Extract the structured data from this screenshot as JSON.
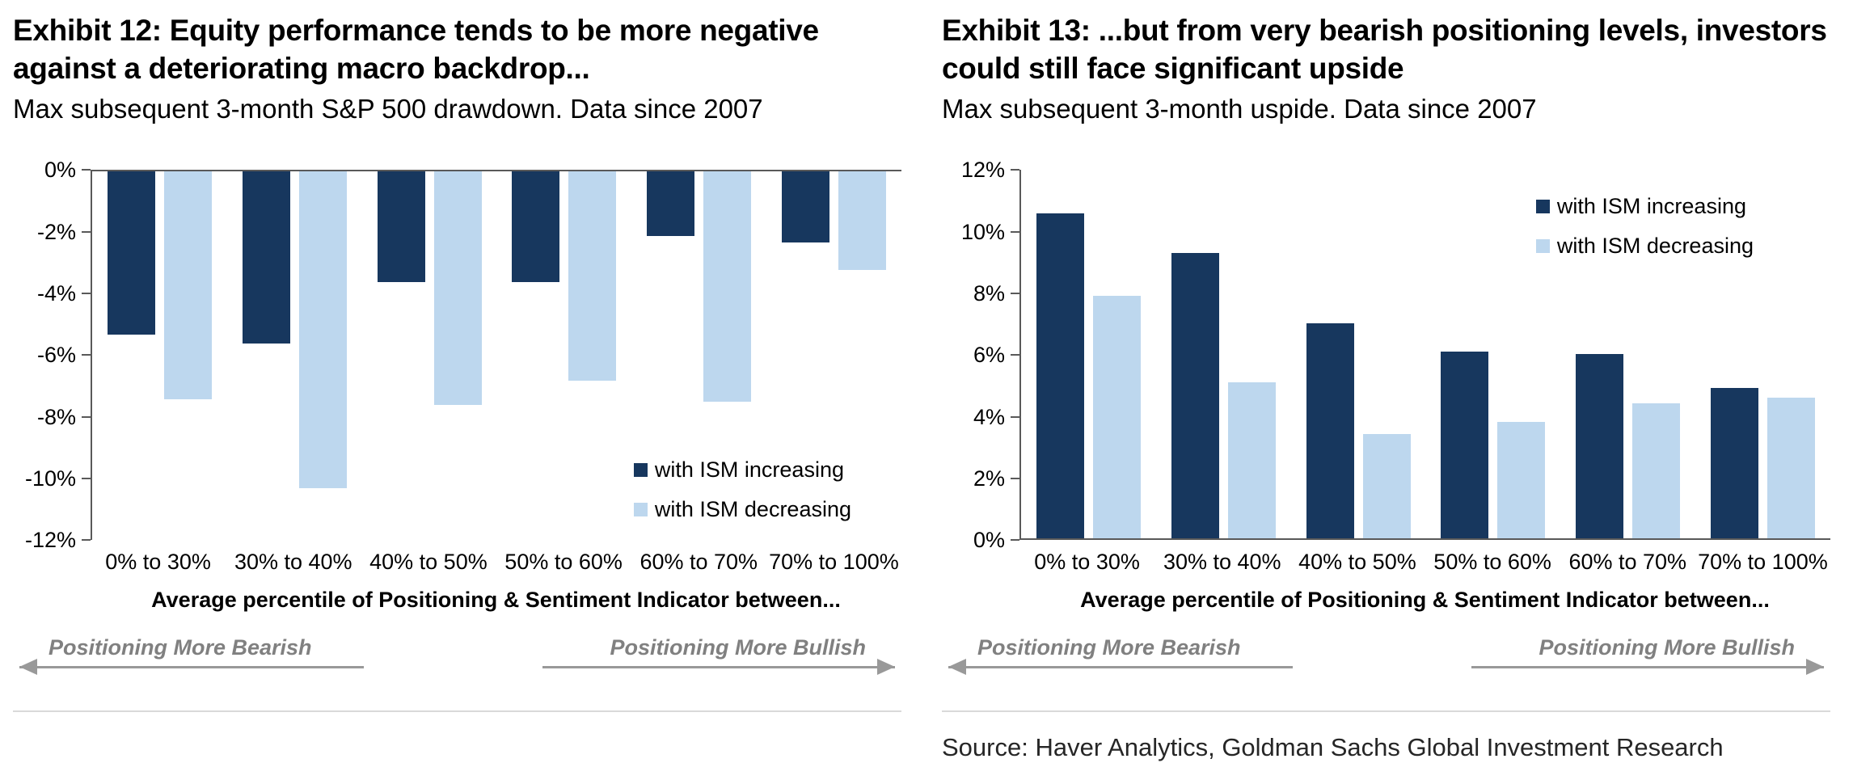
{
  "colors": {
    "series_dark": "#17375E",
    "series_light": "#BDD7EE",
    "axis": "#595959",
    "arrow_gray": "#999999",
    "arrow_text": "#808080",
    "divider": "#D9D9D9"
  },
  "source": "Source: Haver Analytics, Goldman Sachs Global Investment Research",
  "chart_data": [
    {
      "type": "bar",
      "title": "Exhibit 12: Equity performance tends to be more negative against a deteriorating macro backdrop...",
      "subtitle": "Max subsequent 3-month S&P 500 drawdown. Data since 2007",
      "xlabel": "Average percentile of Positioning & Sentiment Indicator between...",
      "categories": [
        "0% to 30%",
        "30% to 40%",
        "40% to 50%",
        "50% to 60%",
        "60% to 70%",
        "70% to 100%"
      ],
      "series": [
        {
          "name": "with ISM increasing",
          "color": "#17375E",
          "values": [
            -5.3,
            -5.6,
            -3.6,
            -3.6,
            -2.1,
            -2.3
          ]
        },
        {
          "name": "with ISM decreasing",
          "color": "#BDD7EE",
          "values": [
            -7.4,
            -10.3,
            -7.6,
            -6.8,
            -7.5,
            -3.2
          ]
        }
      ],
      "ylim": [
        -12,
        0
      ],
      "yticks": [
        "0%",
        "-2%",
        "-4%",
        "-6%",
        "-8%",
        "-10%",
        "-12%"
      ],
      "grid": "off",
      "legend_position": "lower-right",
      "annotations": {
        "left_arrow": "Positioning More Bearish",
        "right_arrow": "Positioning More Bullish"
      }
    },
    {
      "type": "bar",
      "title": "Exhibit 13: ...but from very bearish positioning levels, investors could still face significant upside",
      "subtitle": "Max subsequent 3-month uspide. Data since 2007",
      "xlabel": "Average percentile of Positioning & Sentiment Indicator between...",
      "categories": [
        "0% to 30%",
        "30% to 40%",
        "40% to 50%",
        "50% to 60%",
        "60% to 70%",
        "70% to 100%"
      ],
      "series": [
        {
          "name": "with ISM increasing",
          "color": "#17375E",
          "values": [
            10.6,
            9.3,
            7.0,
            6.1,
            6.0,
            4.9
          ]
        },
        {
          "name": "with ISM decreasing",
          "color": "#BDD7EE",
          "values": [
            7.9,
            5.1,
            3.4,
            3.8,
            4.4,
            4.6
          ]
        }
      ],
      "ylim": [
        0,
        12
      ],
      "yticks": [
        "12%",
        "10%",
        "8%",
        "6%",
        "4%",
        "2%",
        "0%"
      ],
      "grid": "off",
      "legend_position": "upper-right",
      "annotations": {
        "left_arrow": "Positioning More Bearish",
        "right_arrow": "Positioning More Bullish"
      }
    }
  ]
}
